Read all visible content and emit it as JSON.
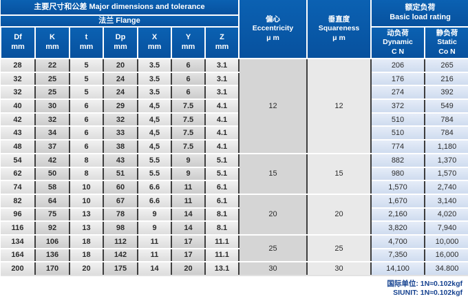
{
  "header": {
    "title": "主要尺寸和公差   Major dimensions and tolerance",
    "flange": "法兰   Flange",
    "columns": [
      "Df\nmm",
      "K\nmm",
      "t\nmm",
      "Dp\nmm",
      "X\nmm",
      "Y\nmm",
      "Z\nmm"
    ],
    "eccentricity": "偏心\nEccentricity\nμ m",
    "squareness": "垂直度\nSquareness\nμ m",
    "load_rating": "额定负荷\nBasic load rating",
    "dynamic": "动负荷\nDynamic\nC N",
    "static": "静负荷\nStatic\nCo N"
  },
  "body": {
    "rows": [
      [
        "28",
        "22",
        "5",
        "20",
        "3.5",
        "6",
        "3.1",
        "206",
        "265"
      ],
      [
        "32",
        "25",
        "5",
        "24",
        "3.5",
        "6",
        "3.1",
        "176",
        "216"
      ],
      [
        "32",
        "25",
        "5",
        "24",
        "3.5",
        "6",
        "3.1",
        "274",
        "392"
      ],
      [
        "40",
        "30",
        "6",
        "29",
        "4,5",
        "7.5",
        "4.1",
        "372",
        "549"
      ],
      [
        "42",
        "32",
        "6",
        "32",
        "4,5",
        "7.5",
        "4.1",
        "510",
        "784"
      ],
      [
        "43",
        "34",
        "6",
        "33",
        "4,5",
        "7.5",
        "4.1",
        "510",
        "784"
      ],
      [
        "48",
        "37",
        "6",
        "38",
        "4,5",
        "7.5",
        "4.1",
        "774",
        "1,180"
      ],
      [
        "54",
        "42",
        "8",
        "43",
        "5.5",
        "9",
        "5.1",
        "882",
        "1,370"
      ],
      [
        "62",
        "50",
        "8",
        "51",
        "5.5",
        "9",
        "5.1",
        "980",
        "1,570"
      ],
      [
        "74",
        "58",
        "10",
        "60",
        "6.6",
        "11",
        "6.1",
        "1,570",
        "2,740"
      ],
      [
        "82",
        "64",
        "10",
        "67",
        "6.6",
        "11",
        "6.1",
        "1,670",
        "3,140"
      ],
      [
        "96",
        "75",
        "13",
        "78",
        "9",
        "14",
        "8.1",
        "2,160",
        "4,020"
      ],
      [
        "116",
        "92",
        "13",
        "98",
        "9",
        "14",
        "8.1",
        "3,820",
        "7,940"
      ],
      [
        "134",
        "106",
        "18",
        "112",
        "11",
        "17",
        "11.1",
        "4,700",
        "10,000"
      ],
      [
        "164",
        "136",
        "18",
        "142",
        "11",
        "17",
        "11.1",
        "7,350",
        "16,000"
      ],
      [
        "200",
        "170",
        "20",
        "175",
        "14",
        "20",
        "13.1",
        "14,100",
        "34.800"
      ]
    ],
    "groups": [
      {
        "start": 0,
        "span": 7,
        "eccentricity": "12",
        "squareness": "12"
      },
      {
        "start": 7,
        "span": 3,
        "eccentricity": "15",
        "squareness": "15"
      },
      {
        "start": 10,
        "span": 3,
        "eccentricity": "20",
        "squareness": "20"
      },
      {
        "start": 13,
        "span": 2,
        "eccentricity": "25",
        "squareness": "25"
      },
      {
        "start": 15,
        "span": 1,
        "eccentricity": "30",
        "squareness": "30"
      }
    ]
  },
  "footer": {
    "line1": "国际单位: 1N≈0.102kgf",
    "line2": "SIUNIT: 1N≈0.102kgf"
  },
  "colors": {
    "header_blue": "#0857a5",
    "light_gray_column": "#ececec",
    "mid_gray_column": "#d4d4d4",
    "load_cell_blue": "#d6e1f2",
    "footer_text": "#14418f"
  }
}
